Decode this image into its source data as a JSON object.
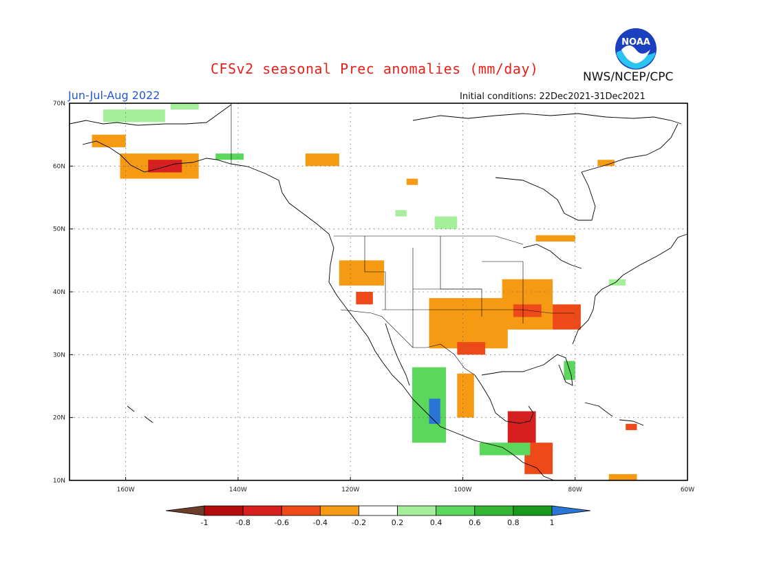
{
  "header": {
    "title": "CFSv2 seasonal Prec anomalies (mm/day)",
    "period": "Jun-Jul-Aug 2022",
    "initial_conditions": "Initial conditions: 22Dec2021-31Dec2021",
    "agency": "NWS/NCEP/CPC",
    "logo_text": "NOAA"
  },
  "map": {
    "lon_range": [
      -170,
      -60
    ],
    "lat_range": [
      10,
      70
    ],
    "lat_ticks": [
      "10N",
      "20N",
      "30N",
      "40N",
      "50N",
      "60N",
      "70N"
    ],
    "lon_ticks": [
      "160W",
      "140W",
      "120W",
      "100W",
      "80W",
      "60W"
    ],
    "gridlines": "dotted"
  },
  "colorbar": {
    "labels": [
      "-1",
      "-0.8",
      "-0.6",
      "-0.4",
      "-0.2",
      "0.2",
      "0.4",
      "0.6",
      "0.8",
      "1"
    ],
    "colors": [
      "#6b3d2a",
      "#b40c0c",
      "#d81f1f",
      "#ee4a19",
      "#f59a12",
      "#ffffff",
      "#a5ef9a",
      "#5bd75b",
      "#34b534",
      "#1a9a1a",
      "#2a75d6"
    ]
  },
  "anomaly_regions": [
    {
      "region": "southern-alaska",
      "color": "#f59a12",
      "lon": [
        -161,
        -147
      ],
      "lat": [
        58,
        62
      ]
    },
    {
      "region": "alaska-core",
      "color": "#d81f1f",
      "lon": [
        -156,
        -150
      ],
      "lat": [
        59,
        61
      ]
    },
    {
      "region": "bering-strait",
      "color": "#f59a12",
      "lon": [
        -166,
        -160
      ],
      "lat": [
        63,
        65
      ]
    },
    {
      "region": "arctic-alaska",
      "color": "#a5ef9a",
      "lon": [
        -164,
        -153
      ],
      "lat": [
        67,
        69
      ]
    },
    {
      "region": "arctic-coast",
      "color": "#a5ef9a",
      "lon": [
        -152,
        -147
      ],
      "lat": [
        69,
        70
      ]
    },
    {
      "region": "yukon",
      "color": "#5bd75b",
      "lon": [
        -144,
        -139
      ],
      "lat": [
        61,
        62
      ]
    },
    {
      "region": "british-columbia",
      "color": "#f59a12",
      "lon": [
        -128,
        -122
      ],
      "lat": [
        60,
        62
      ]
    },
    {
      "region": "pacific-northwest",
      "color": "#f59a12",
      "lon": [
        -122,
        -114
      ],
      "lat": [
        41,
        45
      ]
    },
    {
      "region": "california-east",
      "color": "#ee4a19",
      "lon": [
        -119,
        -116
      ],
      "lat": [
        38,
        40
      ]
    },
    {
      "region": "central-plains",
      "color": "#f59a12",
      "lon": [
        -106,
        -92
      ],
      "lat": [
        31,
        39
      ]
    },
    {
      "region": "texas-core",
      "color": "#ee4a19",
      "lon": [
        -101,
        -96
      ],
      "lat": [
        30,
        32
      ]
    },
    {
      "region": "ohio-valley",
      "color": "#f59a12",
      "lon": [
        -93,
        -84
      ],
      "lat": [
        34,
        42
      ]
    },
    {
      "region": "tennessee",
      "color": "#ee4a19",
      "lon": [
        -91,
        -86
      ],
      "lat": [
        36,
        38
      ]
    },
    {
      "region": "carolinas",
      "color": "#ee4a19",
      "lon": [
        -84,
        -79
      ],
      "lat": [
        34,
        38
      ]
    },
    {
      "region": "great-lakes-north",
      "color": "#f59a12",
      "lon": [
        -87,
        -80
      ],
      "lat": [
        48,
        49
      ]
    },
    {
      "region": "hudson",
      "color": "#f59a12",
      "lon": [
        -76,
        -73
      ],
      "lat": [
        60,
        61
      ]
    },
    {
      "region": "nw-territories",
      "color": "#f59a12",
      "lon": [
        -110,
        -108
      ],
      "lat": [
        57,
        58
      ]
    },
    {
      "region": "manitoba",
      "color": "#a5ef9a",
      "lon": [
        -105,
        -101
      ],
      "lat": [
        50,
        52
      ]
    },
    {
      "region": "saskatchewan",
      "color": "#a5ef9a",
      "lon": [
        -112,
        -110
      ],
      "lat": [
        52,
        53
      ]
    },
    {
      "region": "florida",
      "color": "#5bd75b",
      "lon": [
        -82,
        -80
      ],
      "lat": [
        26,
        29
      ]
    },
    {
      "region": "new-england",
      "color": "#a5ef9a",
      "lon": [
        -74,
        -71
      ],
      "lat": [
        41,
        42
      ]
    },
    {
      "region": "mexico-west",
      "color": "#5bd75b",
      "lon": [
        -109,
        -103
      ],
      "lat": [
        16,
        28
      ]
    },
    {
      "region": "mexico-west-core",
      "color": "#2a75d6",
      "lon": [
        -106,
        -104
      ],
      "lat": [
        19,
        23
      ]
    },
    {
      "region": "gulf-coast-mexico",
      "color": "#f59a12",
      "lon": [
        -101,
        -98
      ],
      "lat": [
        20,
        27
      ]
    },
    {
      "region": "yucatan",
      "color": "#d81f1f",
      "lon": [
        -92,
        -87
      ],
      "lat": [
        15,
        21
      ]
    },
    {
      "region": "central-america",
      "color": "#ee4a19",
      "lon": [
        -89,
        -84
      ],
      "lat": [
        11,
        16
      ]
    },
    {
      "region": "central-america-green",
      "color": "#5bd75b",
      "lon": [
        -97,
        -88
      ],
      "lat": [
        14,
        16
      ]
    },
    {
      "region": "caribbean-south",
      "color": "#f59a12",
      "lon": [
        -74,
        -69
      ],
      "lat": [
        10,
        11
      ]
    },
    {
      "region": "hispaniola",
      "color": "#ee4a19",
      "lon": [
        -71,
        -69
      ],
      "lat": [
        18,
        19
      ]
    }
  ]
}
